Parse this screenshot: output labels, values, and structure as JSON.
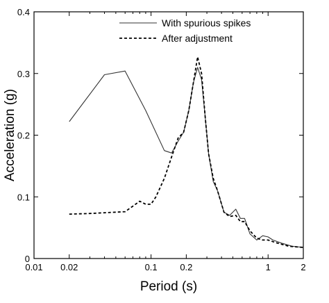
{
  "chart_data": {
    "type": "line",
    "title": "",
    "xlabel": "Period (s)",
    "ylabel": "Acceleration (g)",
    "xscale": "log",
    "xlim": [
      0.01,
      2
    ],
    "ylim": [
      0,
      0.4
    ],
    "xticks": [
      {
        "value": 0.01,
        "label": "0.01"
      },
      {
        "value": 0.02,
        "label": "0.02"
      },
      {
        "value": 0.1,
        "label": "0.1"
      },
      {
        "value": 0.2,
        "label": "0.2"
      },
      {
        "value": 1,
        "label": "1"
      },
      {
        "value": 2,
        "label": "2"
      }
    ],
    "yticks": [
      {
        "value": 0,
        "label": "0"
      },
      {
        "value": 0.1,
        "label": "0.1"
      },
      {
        "value": 0.2,
        "label": "0.2"
      },
      {
        "value": 0.3,
        "label": "0.3"
      },
      {
        "value": 0.4,
        "label": "0.4"
      }
    ],
    "grid": false,
    "legend_position": "top-right",
    "series": [
      {
        "name": "With spurious spikes",
        "style": "solid",
        "color": "#333333",
        "points": [
          [
            0.02,
            0.222
          ],
          [
            0.04,
            0.298
          ],
          [
            0.06,
            0.304
          ],
          [
            0.09,
            0.24
          ],
          [
            0.13,
            0.175
          ],
          [
            0.15,
            0.171
          ],
          [
            0.17,
            0.19
          ],
          [
            0.19,
            0.205
          ],
          [
            0.21,
            0.24
          ],
          [
            0.23,
            0.285
          ],
          [
            0.25,
            0.31
          ],
          [
            0.27,
            0.29
          ],
          [
            0.29,
            0.23
          ],
          [
            0.31,
            0.17
          ],
          [
            0.34,
            0.125
          ],
          [
            0.37,
            0.11
          ],
          [
            0.42,
            0.075
          ],
          [
            0.47,
            0.07
          ],
          [
            0.53,
            0.08
          ],
          [
            0.58,
            0.065
          ],
          [
            0.63,
            0.065
          ],
          [
            0.7,
            0.04
          ],
          [
            0.8,
            0.03
          ],
          [
            0.9,
            0.037
          ],
          [
            1.0,
            0.035
          ],
          [
            1.1,
            0.03
          ],
          [
            1.3,
            0.025
          ],
          [
            1.6,
            0.02
          ],
          [
            2.0,
            0.018
          ]
        ]
      },
      {
        "name": "After adjustment",
        "style": "dashed",
        "color": "#000000",
        "points": [
          [
            0.02,
            0.072
          ],
          [
            0.03,
            0.073
          ],
          [
            0.06,
            0.076
          ],
          [
            0.07,
            0.085
          ],
          [
            0.08,
            0.093
          ],
          [
            0.09,
            0.088
          ],
          [
            0.1,
            0.088
          ],
          [
            0.11,
            0.1
          ],
          [
            0.13,
            0.13
          ],
          [
            0.15,
            0.165
          ],
          [
            0.17,
            0.195
          ],
          [
            0.19,
            0.205
          ],
          [
            0.21,
            0.24
          ],
          [
            0.23,
            0.285
          ],
          [
            0.25,
            0.327
          ],
          [
            0.27,
            0.3
          ],
          [
            0.29,
            0.23
          ],
          [
            0.31,
            0.17
          ],
          [
            0.34,
            0.13
          ],
          [
            0.37,
            0.11
          ],
          [
            0.42,
            0.075
          ],
          [
            0.47,
            0.068
          ],
          [
            0.53,
            0.07
          ],
          [
            0.58,
            0.06
          ],
          [
            0.63,
            0.06
          ],
          [
            0.7,
            0.045
          ],
          [
            0.8,
            0.033
          ],
          [
            0.9,
            0.03
          ],
          [
            1.0,
            0.03
          ],
          [
            1.2,
            0.025
          ],
          [
            1.5,
            0.02
          ],
          [
            2.0,
            0.018
          ]
        ]
      }
    ]
  }
}
